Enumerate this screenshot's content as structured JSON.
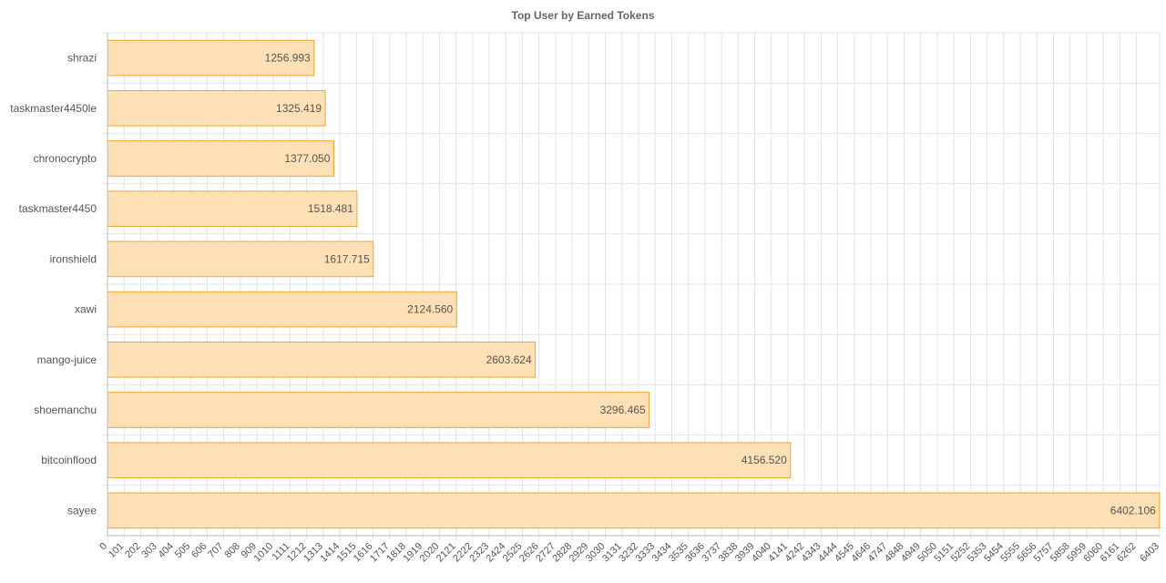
{
  "chart_data": {
    "type": "bar",
    "orientation": "horizontal",
    "title": "Top User by Earned Tokens",
    "xlabel": "",
    "ylabel": "",
    "categories": [
      "shrazi",
      "taskmaster4450le",
      "chronocrypto",
      "taskmaster4450",
      "ironshield",
      "xawi",
      "mango-juice",
      "shoemanchu",
      "bitcoinflood",
      "sayee"
    ],
    "values": [
      1256.993,
      1325.419,
      1377.05,
      1518.481,
      1617.715,
      2124.56,
      2603.624,
      3296.465,
      4156.52,
      6402.106
    ],
    "value_labels": [
      "1256.993",
      "1325.419",
      "1377.050",
      "1518.481",
      "1617.715",
      "2124.560",
      "2603.624",
      "3296.465",
      "4156.520",
      "6402.106"
    ],
    "xlim": [
      0,
      6403
    ],
    "x_ticks": [
      "0",
      "101",
      "202",
      "303",
      "404",
      "505",
      "606",
      "707",
      "808",
      "909",
      "1010",
      "1111",
      "1212",
      "1313",
      "1414",
      "1515",
      "1616",
      "1717",
      "1818",
      "1919",
      "2020",
      "2121",
      "2222",
      "2323",
      "2424",
      "2525",
      "2626",
      "2727",
      "2828",
      "2929",
      "3030",
      "3131",
      "3232",
      "3333",
      "3434",
      "3535",
      "3636",
      "3737",
      "3838",
      "3939",
      "4040",
      "4141",
      "4242",
      "4343",
      "4444",
      "4545",
      "4646",
      "4747",
      "4848",
      "4949",
      "5050",
      "5151",
      "5252",
      "5353",
      "5454",
      "5555",
      "5656",
      "5757",
      "5858",
      "5959",
      "6060",
      "6161",
      "6262",
      "6403"
    ],
    "grid": true,
    "bar_color": "#fde0b6",
    "bar_border_color": "#f3a32f",
    "grid_color": "#e3e3e3",
    "legend": "none"
  }
}
